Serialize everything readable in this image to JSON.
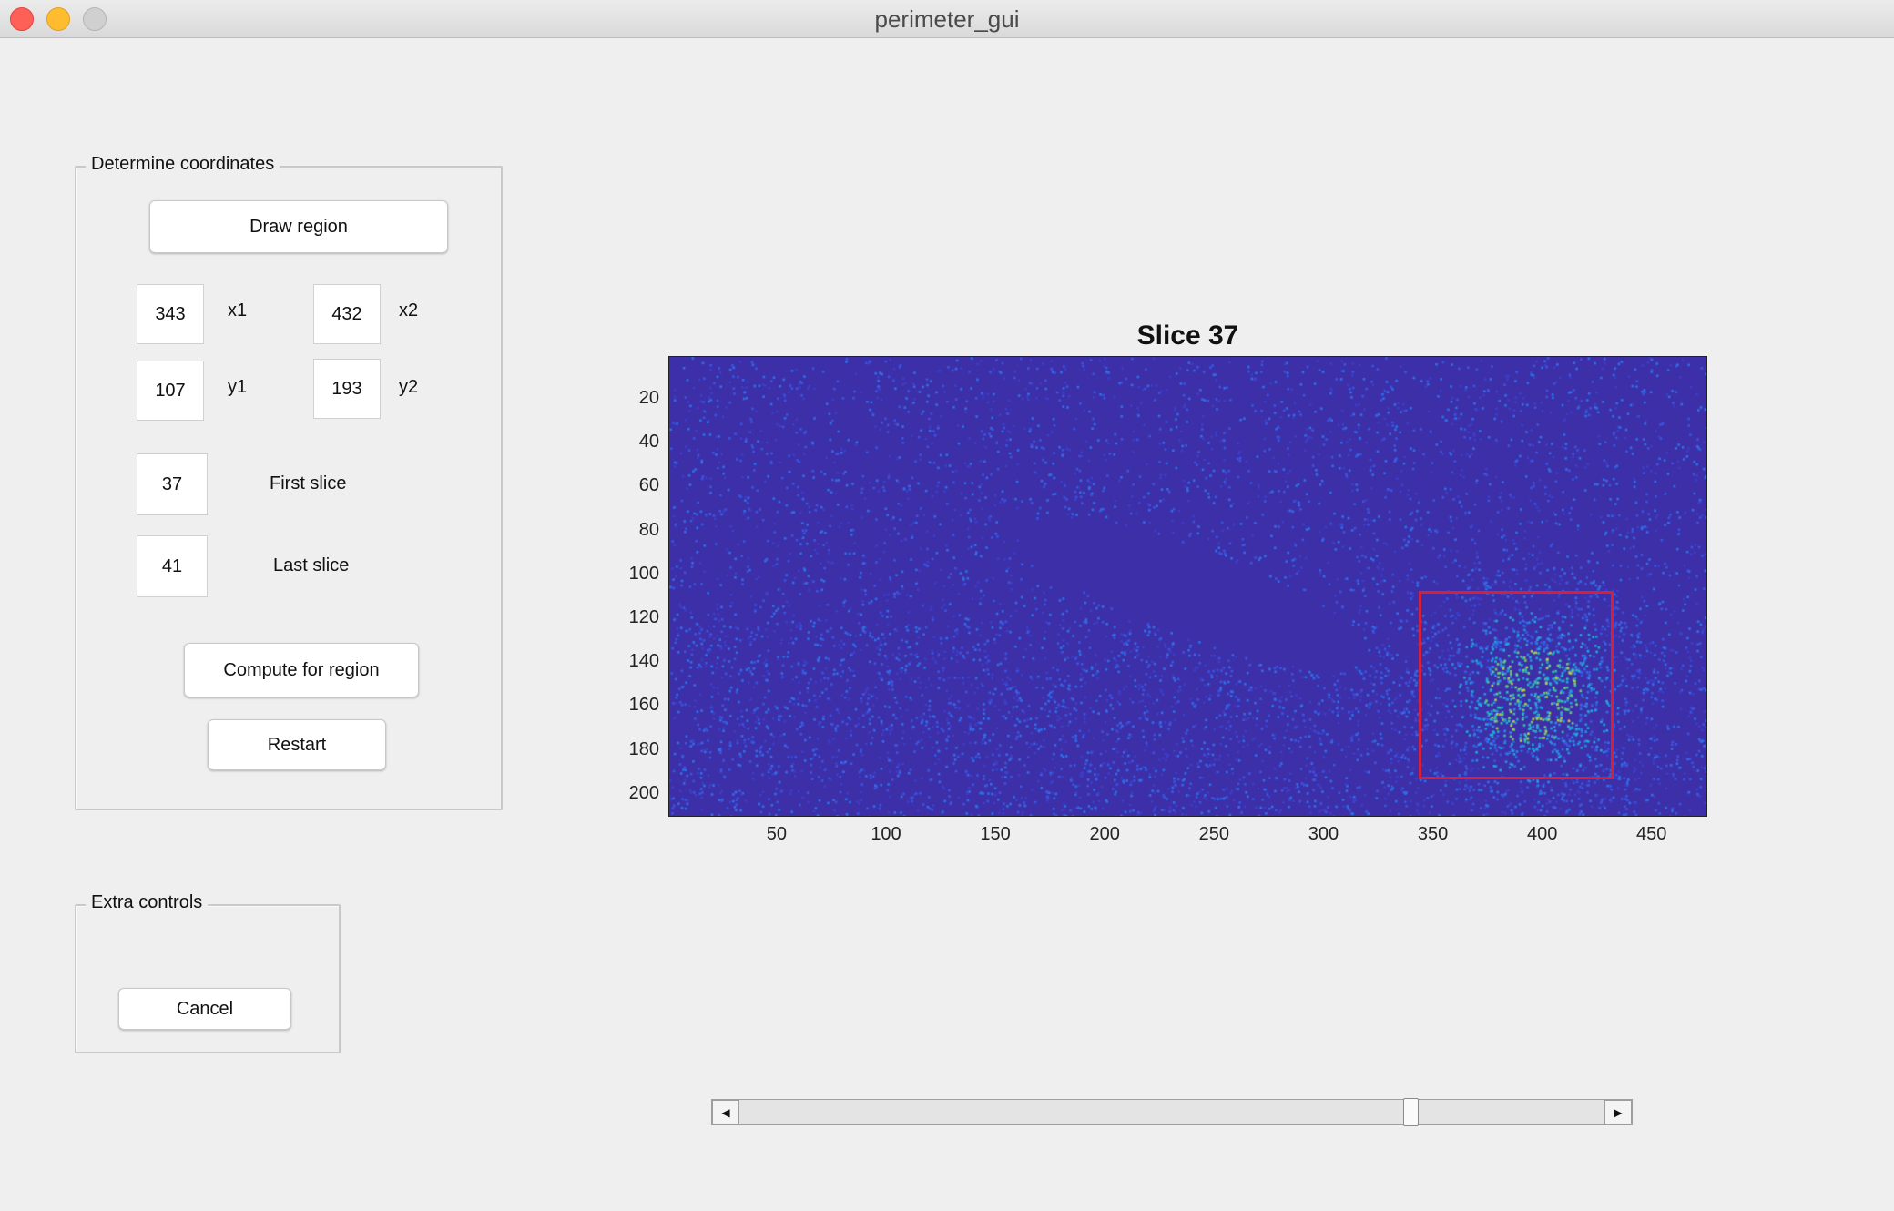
{
  "window": {
    "title": "perimeter_gui"
  },
  "coords_panel": {
    "title": "Determine coordinates",
    "draw_button": "Draw region",
    "x1": {
      "value": "343",
      "label": "x1"
    },
    "x2": {
      "value": "432",
      "label": "x2"
    },
    "y1": {
      "value": "107",
      "label": "y1"
    },
    "y2": {
      "value": "193",
      "label": "y2"
    },
    "first_slice": {
      "value": "37",
      "label": "First slice"
    },
    "last_slice": {
      "value": "41",
      "label": "Last slice"
    },
    "compute_button": "Compute for region",
    "restart_button": "Restart"
  },
  "extra_panel": {
    "title": "Extra controls",
    "cancel_button": "Cancel"
  },
  "plot": {
    "title": "Slice 37",
    "xlim": [
      0.5,
      475.5
    ],
    "ylim": [
      0.5,
      210.5
    ],
    "xticks": [
      "50",
      "100",
      "150",
      "200",
      "250",
      "300",
      "350",
      "400",
      "450"
    ],
    "yticks": [
      "20",
      "40",
      "60",
      "80",
      "100",
      "120",
      "140",
      "160",
      "180",
      "200"
    ],
    "roi": {
      "x1": 343,
      "x2": 432,
      "y1": 107,
      "y2": 193,
      "color": "#d4203a"
    },
    "colormap": "parula",
    "background_color": "#3c2fa8"
  },
  "slider": {
    "fraction": 0.78
  }
}
